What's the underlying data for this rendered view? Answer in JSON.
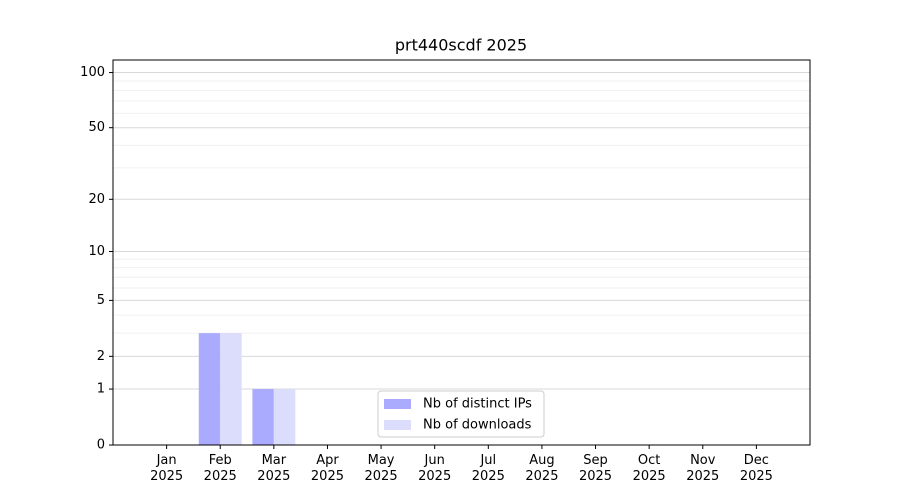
{
  "chart_data": {
    "type": "bar",
    "title": "prt440scdf 2025",
    "categories": [
      "Jan 2025",
      "Feb 2025",
      "Mar 2025",
      "Apr 2025",
      "May 2025",
      "Jun 2025",
      "Jul 2025",
      "Aug 2025",
      "Sep 2025",
      "Oct 2025",
      "Nov 2025",
      "Dec 2025"
    ],
    "series": [
      {
        "name": "Nb of distinct IPs",
        "color": "#aaaaff",
        "values": [
          0,
          3,
          1,
          0,
          0,
          0,
          0,
          0,
          0,
          0,
          0,
          0
        ]
      },
      {
        "name": "Nb of downloads",
        "color": "#dcdcfc",
        "values": [
          0,
          3,
          1,
          0,
          0,
          0,
          0,
          0,
          0,
          0,
          0,
          0
        ]
      }
    ],
    "yscale": "log1p",
    "ylim": [
      0,
      117
    ],
    "yticks": [
      0,
      1,
      2,
      5,
      10,
      20,
      50,
      100
    ],
    "minor_yticks": [
      3,
      4,
      6,
      7,
      8,
      9,
      30,
      40,
      60,
      70,
      80,
      90
    ],
    "grid": true,
    "legend": "lower center"
  }
}
